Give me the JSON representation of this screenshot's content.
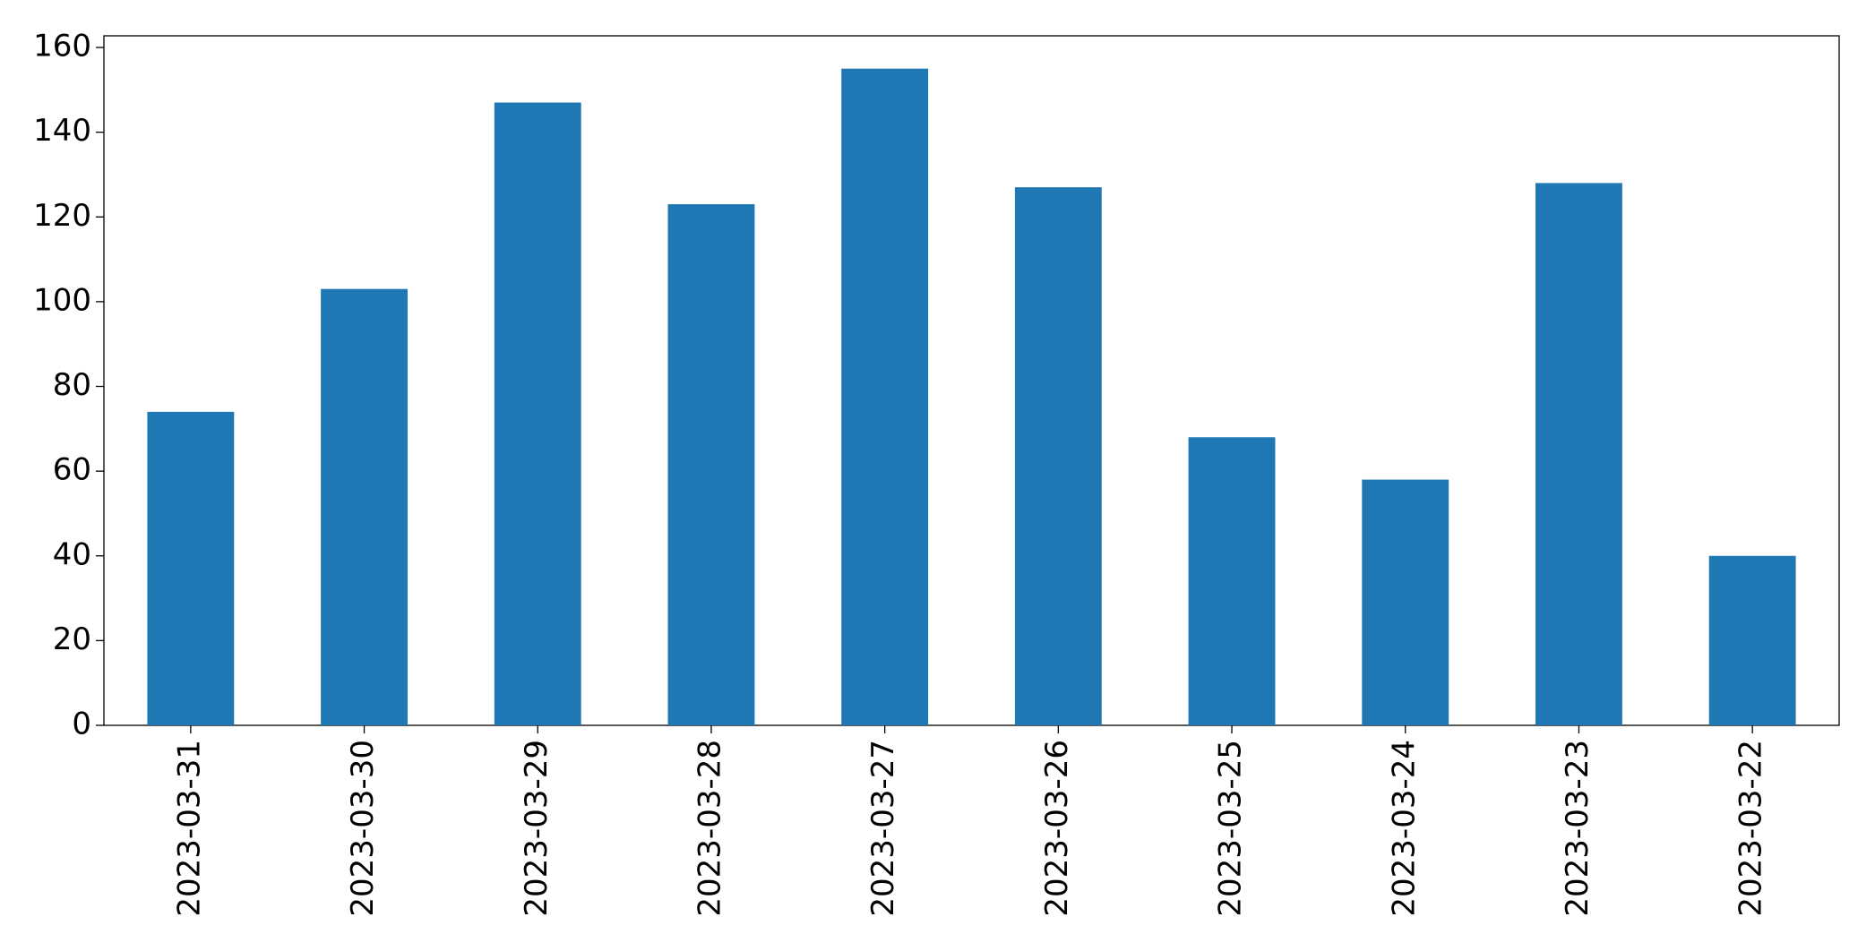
{
  "chart_data": {
    "type": "bar",
    "categories": [
      "2023-03-31",
      "2023-03-30",
      "2023-03-29",
      "2023-03-28",
      "2023-03-27",
      "2023-03-26",
      "2023-03-25",
      "2023-03-24",
      "2023-03-23",
      "2023-03-22"
    ],
    "values": [
      74,
      103,
      147,
      123,
      155,
      127,
      68,
      58,
      128,
      40
    ],
    "color": "#1f77b4",
    "ylim": [
      0,
      162.75
    ],
    "yticks": [
      0,
      20,
      40,
      60,
      80,
      100,
      120,
      140,
      160
    ],
    "grid": false
  }
}
